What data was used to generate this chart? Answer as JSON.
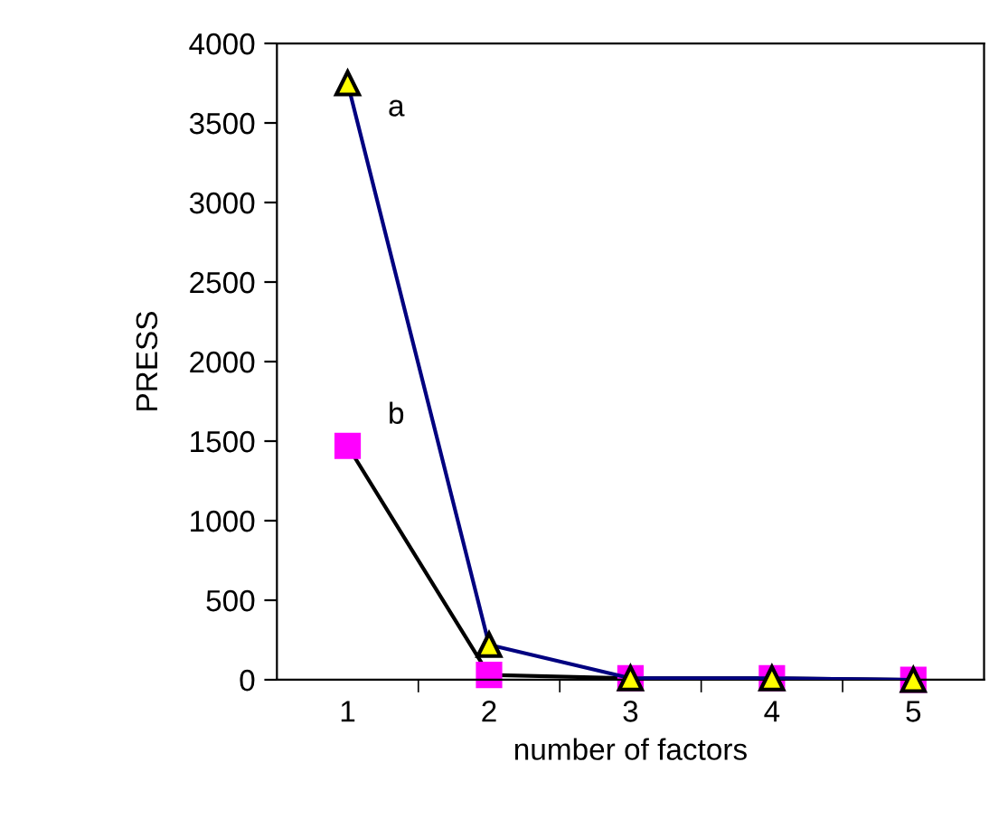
{
  "chart_data": {
    "type": "line",
    "xlabel": "number of factors",
    "ylabel": "PRESS",
    "categories": [
      "1",
      "2",
      "3",
      "4",
      "5"
    ],
    "series": [
      {
        "name": "b",
        "color": "#000000",
        "marker": "square",
        "colors": [
          "#ff00ff",
          "#ff00ff",
          "#ff00ff",
          "#ff00ff",
          "#ff00ff"
        ],
        "values": [
          1470,
          30,
          10,
          10,
          0
        ]
      },
      {
        "name": "a",
        "color": "#000080",
        "marker": "triangle",
        "colors": [
          "#ffff00",
          "#ffff00",
          "#ffff00",
          "#ffff00",
          "#ffff00"
        ],
        "values": [
          3750,
          220,
          10,
          10,
          0
        ]
      }
    ],
    "ylim": [
      0,
      4000
    ],
    "yticks": [
      0,
      500,
      1000,
      1500,
      2000,
      2500,
      3000,
      3500,
      4000
    ],
    "grid": false,
    "legend": false
  }
}
